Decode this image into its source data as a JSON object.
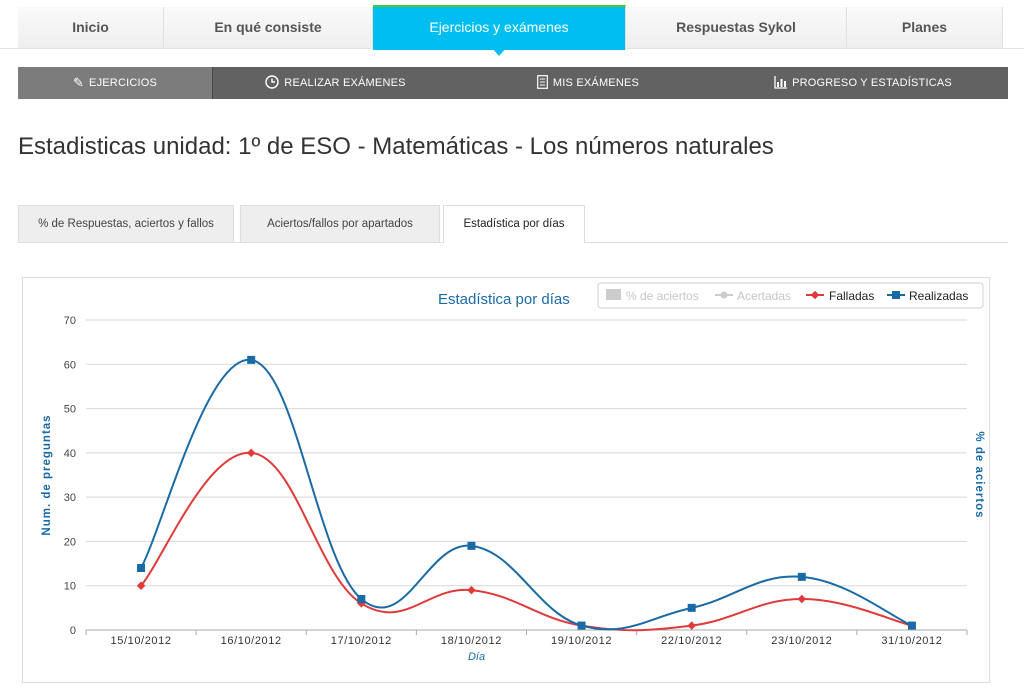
{
  "topnav": {
    "items": [
      {
        "label": "Inicio"
      },
      {
        "label": "En qué consiste"
      },
      {
        "label": "Ejercicios y exámenes"
      },
      {
        "label": "Respuestas Sykol"
      },
      {
        "label": "Planes"
      }
    ],
    "accent_color": "#00bff0"
  },
  "subnav": {
    "items": [
      {
        "label": "EJERCICIOS",
        "icon": "pencil-icon"
      },
      {
        "label": "REALIZAR EXÁMENES",
        "icon": "clock-icon"
      },
      {
        "label": "MIS EXÁMENES",
        "icon": "document-icon"
      },
      {
        "label": "PROGRESO Y ESTADÍSTICAS",
        "icon": "chart-icon"
      }
    ]
  },
  "page": {
    "title": "Estadisticas unidad: 1º de ESO - Matemáticas - Los números naturales"
  },
  "tabs": [
    {
      "label": "% de Respuestas, aciertos y fallos"
    },
    {
      "label": "Aciertos/fallos por apartados"
    },
    {
      "label": "Estadística por días"
    }
  ],
  "chart_data": {
    "type": "line",
    "title": "Estadística por días",
    "categories": [
      "15/10/2012",
      "16/10/2012",
      "17/10/2012",
      "18/10/2012",
      "19/10/2012",
      "22/10/2012",
      "23/10/2012",
      "31/10/2012"
    ],
    "series": [
      {
        "name": "Falladas",
        "values": [
          10,
          40,
          6,
          9,
          1,
          1,
          7,
          1
        ],
        "color": "#e03a3a"
      },
      {
        "name": "Realizadas",
        "values": [
          14,
          61,
          7,
          19,
          1,
          5,
          12,
          1
        ],
        "color": "#1a6aa6"
      }
    ],
    "hidden_series": [
      {
        "name": "% de aciertos"
      },
      {
        "name": "Acertadas"
      }
    ],
    "xlabel": "Día",
    "ylabel": "Num. de preguntas",
    "y2label": "% de aciertos",
    "ylim": [
      0,
      70
    ],
    "yticks": [
      0,
      10,
      20,
      30,
      40,
      50,
      60,
      70
    ],
    "grid": true,
    "legend_position": "top-right"
  }
}
